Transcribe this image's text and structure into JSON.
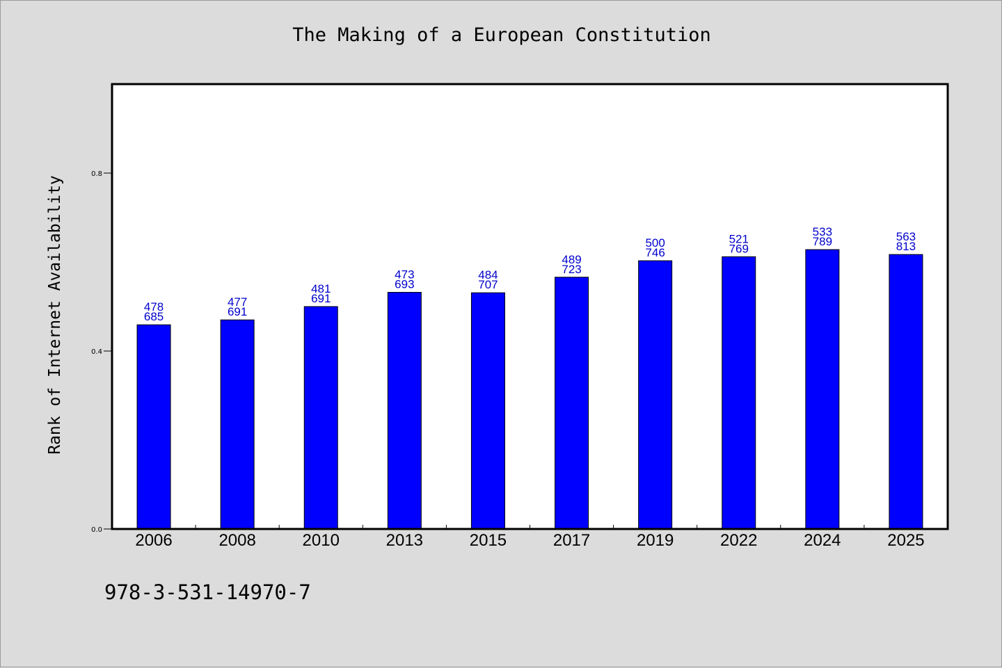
{
  "title": "The Making of a European Constitution",
  "footer_text": "978-3-531-14970-7",
  "chart_data": {
    "type": "bar",
    "title": "The Making of a European Constitution",
    "xlabel": "",
    "ylabel": "Rank of Internet Availability",
    "ylim": [
      0,
      1.0
    ],
    "yticks": [
      0.0,
      0.4,
      0.8
    ],
    "ytick_labels": [
      "0.0",
      "0.4",
      "0.8"
    ],
    "categories": [
      "2006",
      "2008",
      "2010",
      "2013",
      "2015",
      "2017",
      "2019",
      "2022",
      "2024",
      "2025"
    ],
    "values": [
      0.459,
      0.47,
      0.5,
      0.532,
      0.531,
      0.566,
      0.603,
      0.612,
      0.628,
      0.617
    ],
    "bar_labels": [
      [
        "478",
        "685"
      ],
      [
        "477",
        "691"
      ],
      [
        "481",
        "691"
      ],
      [
        "473",
        "693"
      ],
      [
        "484",
        "707"
      ],
      [
        "489",
        "723"
      ],
      [
        "500",
        "746"
      ],
      [
        "521",
        "769"
      ],
      [
        "533",
        "789"
      ],
      [
        "563",
        "813"
      ]
    ],
    "bar_color": "#0000ff",
    "label_color": "#0000cc",
    "grid": false,
    "legend": "none"
  }
}
